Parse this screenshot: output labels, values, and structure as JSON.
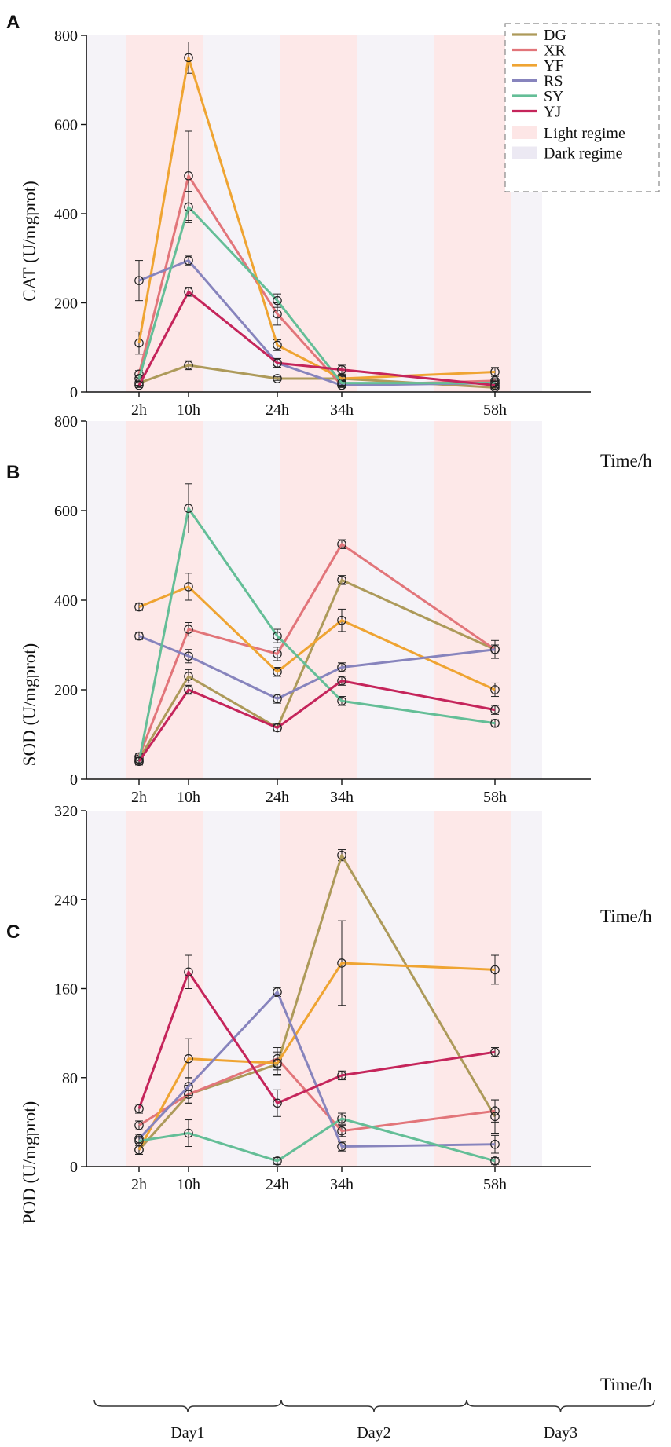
{
  "chart_data": [
    {
      "type": "line",
      "panel_label": "A",
      "ylabel": "CAT (U/mgprot)",
      "xlabel": "Time/h",
      "x": [
        2,
        10,
        24,
        34,
        58
      ],
      "x_tick_labels": [
        "2h",
        "10h",
        "24h",
        "34h",
        "58h"
      ],
      "ylim": [
        0,
        800
      ],
      "yticks": [
        0,
        200,
        400,
        600,
        800
      ],
      "series": [
        {
          "name": "DG",
          "values": [
            20,
            60,
            30,
            30,
            10
          ],
          "errors": [
            5,
            10,
            4,
            4,
            3
          ]
        },
        {
          "name": "XR",
          "values": [
            40,
            485,
            175,
            15,
            25
          ],
          "errors": [
            8,
            100,
            25,
            5,
            5
          ]
        },
        {
          "name": "YF",
          "values": [
            110,
            750,
            105,
            30,
            45
          ],
          "errors": [
            25,
            35,
            12,
            6,
            10
          ]
        },
        {
          "name": "RS",
          "values": [
            250,
            295,
            65,
            15,
            20
          ],
          "errors": [
            45,
            10,
            10,
            4,
            4
          ]
        },
        {
          "name": "SY",
          "values": [
            30,
            415,
            205,
            20,
            20
          ],
          "errors": [
            6,
            35,
            15,
            5,
            5
          ]
        },
        {
          "name": "YJ",
          "values": [
            15,
            225,
            65,
            50,
            15
          ],
          "errors": [
            5,
            10,
            10,
            10,
            5
          ]
        }
      ],
      "legend": {
        "placement": "top-right",
        "extra_entries": [
          {
            "label": "Light regime",
            "color": "#fde6e6"
          },
          {
            "label": "Dark regime",
            "color": "#ece9f3"
          }
        ]
      }
    },
    {
      "type": "line",
      "panel_label": "B",
      "ylabel": "SOD (U/mgprot)",
      "xlabel": "Time/h",
      "x": [
        2,
        10,
        24,
        34,
        58
      ],
      "x_tick_labels": [
        "2h",
        "10h",
        "24h",
        "34h",
        "58h"
      ],
      "ylim": [
        0,
        800
      ],
      "yticks": [
        0,
        200,
        400,
        600,
        800
      ],
      "series": [
        {
          "name": "DG",
          "values": [
            45,
            230,
            115,
            445,
            290
          ],
          "errors": [
            8,
            15,
            8,
            10,
            10
          ]
        },
        {
          "name": "XR",
          "values": [
            50,
            335,
            280,
            525,
            290
          ],
          "errors": [
            8,
            15,
            15,
            10,
            10
          ]
        },
        {
          "name": "YF",
          "values": [
            385,
            430,
            240,
            355,
            200
          ],
          "errors": [
            8,
            30,
            10,
            25,
            15
          ]
        },
        {
          "name": "RS",
          "values": [
            320,
            275,
            180,
            250,
            290
          ],
          "errors": [
            8,
            15,
            10,
            10,
            20
          ]
        },
        {
          "name": "SY",
          "values": [
            40,
            605,
            320,
            175,
            125
          ],
          "errors": [
            8,
            55,
            15,
            10,
            8
          ]
        },
        {
          "name": "YJ",
          "values": [
            40,
            200,
            115,
            220,
            155
          ],
          "errors": [
            8,
            10,
            8,
            10,
            10
          ]
        }
      ]
    },
    {
      "type": "line",
      "panel_label": "C",
      "ylabel": "POD (U/mgprot)",
      "xlabel": "Time/h",
      "x": [
        2,
        10,
        24,
        34,
        58
      ],
      "x_tick_labels": [
        "2h",
        "10h",
        "24h",
        "34h",
        "58h"
      ],
      "ylim": [
        0,
        320
      ],
      "yticks": [
        0,
        80,
        160,
        240,
        320
      ],
      "series": [
        {
          "name": "DG",
          "values": [
            15,
            65,
            92,
            280,
            45
          ],
          "errors": [
            4,
            8,
            10,
            5,
            15
          ]
        },
        {
          "name": "XR",
          "values": [
            37,
            65,
            97,
            32,
            50
          ],
          "errors": [
            4,
            8,
            10,
            5,
            10
          ]
        },
        {
          "name": "YF",
          "values": [
            15,
            97,
            93,
            183,
            177
          ],
          "errors": [
            4,
            18,
            10,
            38,
            13
          ]
        },
        {
          "name": "RS",
          "values": [
            25,
            72,
            157,
            18,
            20
          ],
          "errors": [
            4,
            8,
            4,
            4,
            8
          ]
        },
        {
          "name": "SY",
          "values": [
            23,
            30,
            5,
            43,
            5
          ],
          "errors": [
            4,
            12,
            3,
            5,
            3
          ]
        },
        {
          "name": "YJ",
          "values": [
            52,
            175,
            57,
            82,
            103
          ],
          "errors": [
            4,
            15,
            12,
            4,
            4
          ]
        }
      ],
      "day_labels": [
        "Day1",
        "Day2",
        "Day3"
      ]
    }
  ],
  "colors": {
    "DG": "#ad9a5a",
    "XR": "#e2757a",
    "YF": "#efa432",
    "RS": "#8784bd",
    "SY": "#64be97",
    "YJ": "#c5255b",
    "light": "#fde6e6",
    "dark": "#ece9f3"
  }
}
